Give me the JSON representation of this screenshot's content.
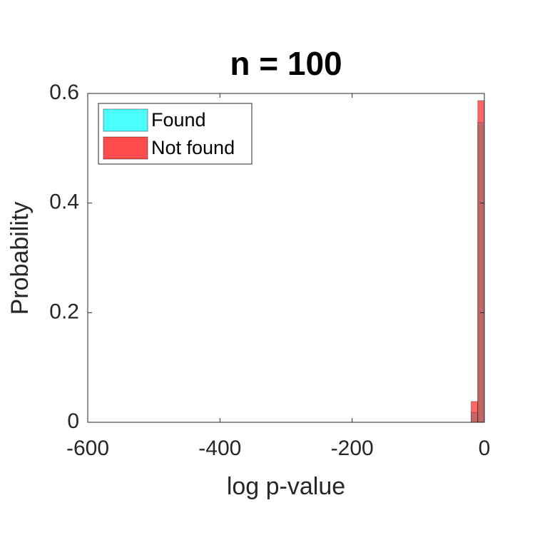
{
  "chart_data": {
    "type": "histogram",
    "title": "n = 100",
    "x_label": "log p-value",
    "y_label": "Probability",
    "bins": [
      -20,
      -10,
      0
    ],
    "series": [
      {
        "name": "Found",
        "color": "#00ffff",
        "values": [
          0.018,
          0.547
        ]
      },
      {
        "name": "Not found",
        "color": "#ff0000",
        "values": [
          0.038,
          0.587
        ]
      }
    ],
    "xlim": [
      -600,
      0
    ],
    "xticks": [
      -600,
      -400,
      -200,
      0
    ],
    "ylim": [
      0,
      0.6
    ],
    "yticks": [
      0,
      0.2,
      0.4,
      0.6
    ],
    "grid": false,
    "legend": "upper left"
  }
}
